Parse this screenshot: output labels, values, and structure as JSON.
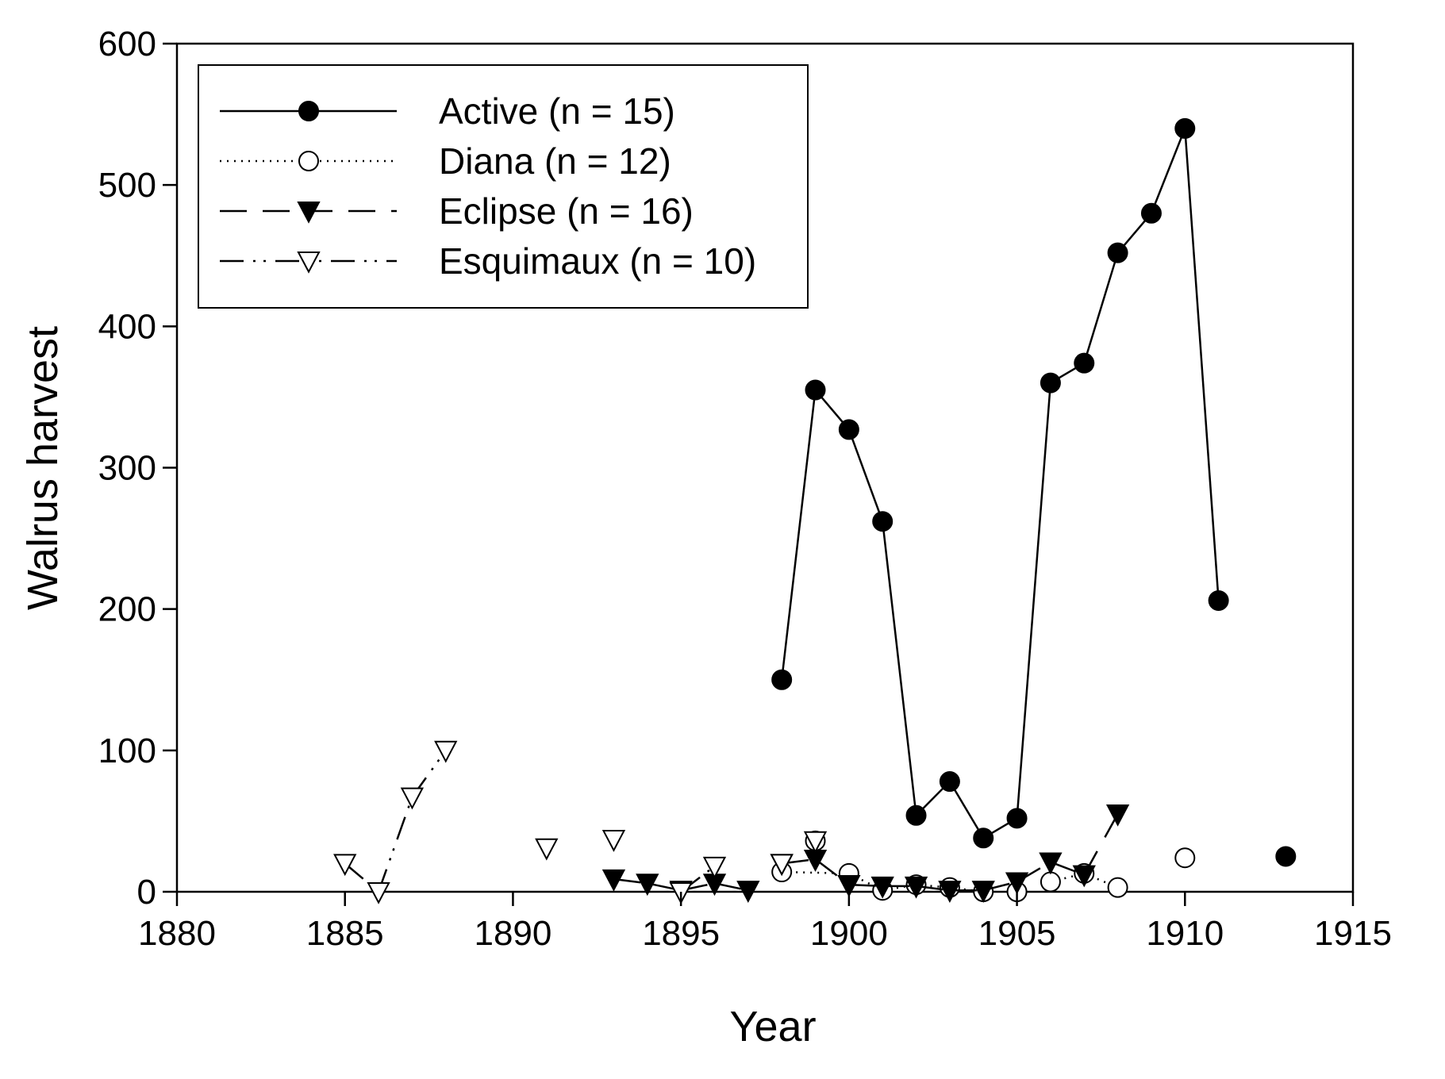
{
  "chart_data": {
    "type": "line",
    "title": "",
    "xlabel": "Year",
    "ylabel": "Walrus harvest",
    "xlim": [
      1880,
      1915
    ],
    "ylim": [
      0,
      600
    ],
    "xticks": [
      1880,
      1885,
      1890,
      1895,
      1900,
      1905,
      1910,
      1915
    ],
    "yticks": [
      0,
      100,
      200,
      300,
      400,
      500,
      600
    ],
    "grid": false,
    "legend_position": "top-left",
    "series": [
      {
        "name": "Active (n = 15)",
        "line_style": "solid",
        "marker": "filled-circle",
        "points": [
          [
            1898,
            150,
            true
          ],
          [
            1899,
            355,
            true
          ],
          [
            1900,
            327,
            true
          ],
          [
            1901,
            262,
            true
          ],
          [
            1902,
            54,
            true
          ],
          [
            1903,
            78,
            true
          ],
          [
            1904,
            38,
            true
          ],
          [
            1905,
            52,
            true
          ],
          [
            1906,
            360,
            true
          ],
          [
            1907,
            374,
            true
          ],
          [
            1908,
            452,
            true
          ],
          [
            1909,
            480,
            true
          ],
          [
            1910,
            540,
            true
          ],
          [
            1911,
            206,
            true
          ],
          [
            1913,
            25,
            false
          ]
        ]
      },
      {
        "name": "Diana (n = 12)",
        "line_style": "dotted",
        "marker": "open-circle",
        "points": [
          [
            1898,
            14,
            false
          ],
          [
            1900,
            13,
            true
          ],
          [
            1901,
            1,
            true
          ],
          [
            1902,
            5,
            true
          ],
          [
            1903,
            3,
            true
          ],
          [
            1904,
            0,
            true
          ],
          [
            1905,
            0,
            false
          ],
          [
            1906,
            7,
            false
          ],
          [
            1907,
            13,
            true
          ],
          [
            1908,
            3,
            true
          ],
          [
            1910,
            24,
            false
          ],
          [
            1899,
            36,
            false
          ]
        ]
      },
      {
        "name": "Eclipse (n = 16)",
        "line_style": "dashed",
        "marker": "filled-triangle-down",
        "points": [
          [
            1893,
            9,
            false
          ],
          [
            1894,
            6,
            true
          ],
          [
            1895,
            1,
            true
          ],
          [
            1896,
            6,
            true
          ],
          [
            1897,
            1,
            true
          ],
          [
            1898,
            20,
            false
          ],
          [
            1899,
            23,
            true
          ],
          [
            1900,
            5,
            true
          ],
          [
            1901,
            4,
            true
          ],
          [
            1902,
            4,
            true
          ],
          [
            1903,
            1,
            true
          ],
          [
            1904,
            1,
            true
          ],
          [
            1905,
            7,
            true
          ],
          [
            1906,
            21,
            true
          ],
          [
            1907,
            12,
            true
          ],
          [
            1908,
            55,
            true
          ]
        ]
      },
      {
        "name": "Esquimaux (n = 10)",
        "line_style": "dash-dot-dot",
        "marker": "open-triangle-down",
        "points": [
          [
            1885,
            20,
            false
          ],
          [
            1886,
            0,
            true
          ],
          [
            1887,
            67,
            true
          ],
          [
            1888,
            100,
            true
          ],
          [
            1891,
            31,
            false
          ],
          [
            1893,
            37,
            false
          ],
          [
            1895,
            0,
            false
          ],
          [
            1896,
            18,
            true
          ],
          [
            1898,
            20,
            false
          ],
          [
            1899,
            36,
            false
          ]
        ]
      }
    ]
  }
}
